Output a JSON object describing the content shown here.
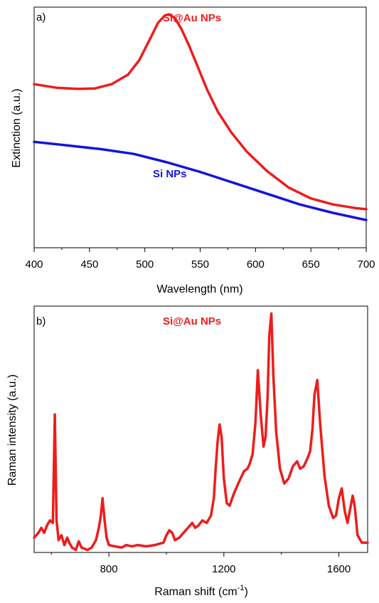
{
  "colors": {
    "red": "#ee1c1c",
    "blue": "#1414dd",
    "axis": "#000000"
  },
  "chart_data": [
    {
      "type": "line",
      "panel_label": "a)",
      "xlabel": "Wavelength (nm)",
      "ylabel": "Extinction (a.u.)",
      "xlim": [
        400,
        700
      ],
      "ylim": [
        0,
        1
      ],
      "y_tick_labels": false,
      "x_ticks": [
        400,
        450,
        500,
        550,
        600,
        650,
        700
      ],
      "series": [
        {
          "name": "Si@Au NPs",
          "color": "#ee1c1c",
          "x": [
            400,
            420,
            440,
            455,
            470,
            485,
            495,
            505,
            512,
            518,
            522,
            527,
            533,
            540,
            548,
            556,
            566,
            578,
            592,
            610,
            630,
            650,
            670,
            690,
            700
          ],
          "y": [
            0.68,
            0.665,
            0.66,
            0.662,
            0.68,
            0.72,
            0.78,
            0.87,
            0.935,
            0.965,
            0.97,
            0.955,
            0.91,
            0.84,
            0.75,
            0.66,
            0.565,
            0.48,
            0.4,
            0.32,
            0.25,
            0.205,
            0.18,
            0.165,
            0.16
          ]
        },
        {
          "name": "Si NPs",
          "color": "#1414dd",
          "x": [
            400,
            430,
            460,
            490,
            520,
            550,
            580,
            610,
            640,
            670,
            700
          ],
          "y": [
            0.44,
            0.425,
            0.41,
            0.39,
            0.355,
            0.315,
            0.27,
            0.225,
            0.18,
            0.145,
            0.115
          ]
        }
      ]
    },
    {
      "type": "line",
      "panel_label": "b)",
      "xlabel": "Raman shift (cm",
      "xlabel_sup": "-1",
      "xlabel_end": ")",
      "ylabel": "Raman intensity (a.u.)",
      "xlim": [
        540,
        1700
      ],
      "ylim": [
        0,
        1
      ],
      "y_tick_labels": false,
      "x_ticks": [
        800,
        1200,
        1600
      ],
      "series": [
        {
          "name": "Si@Au NPs",
          "color": "#ee1c1c",
          "x": [
            540,
            555,
            565,
            575,
            585,
            595,
            605,
            612,
            618,
            625,
            635,
            645,
            655,
            662,
            672,
            685,
            695,
            705,
            715,
            725,
            740,
            755,
            765,
            772,
            778,
            785,
            792,
            800,
            820,
            845,
            860,
            880,
            900,
            930,
            960,
            990,
            1000,
            1010,
            1020,
            1030,
            1045,
            1060,
            1075,
            1090,
            1100,
            1112,
            1125,
            1140,
            1155,
            1165,
            1172,
            1178,
            1185,
            1192,
            1200,
            1210,
            1220,
            1235,
            1250,
            1262,
            1270,
            1282,
            1290,
            1300,
            1310,
            1318,
            1328,
            1338,
            1345,
            1352,
            1358,
            1365,
            1372,
            1382,
            1395,
            1410,
            1425,
            1440,
            1455,
            1465,
            1478,
            1490,
            1500,
            1508,
            1515,
            1525,
            1535,
            1550,
            1565,
            1580,
            1590,
            1600,
            1610,
            1620,
            1630,
            1640,
            1648,
            1655,
            1665,
            1680,
            1700
          ],
          "y": [
            0.06,
            0.08,
            0.1,
            0.08,
            0.11,
            0.13,
            0.12,
            0.56,
            0.13,
            0.05,
            0.07,
            0.03,
            0.06,
            0.04,
            0.02,
            0.01,
            0.045,
            0.02,
            0.015,
            0.01,
            0.02,
            0.05,
            0.1,
            0.15,
            0.22,
            0.13,
            0.06,
            0.03,
            0.025,
            0.02,
            0.03,
            0.025,
            0.03,
            0.025,
            0.03,
            0.04,
            0.07,
            0.09,
            0.08,
            0.05,
            0.06,
            0.08,
            0.1,
            0.12,
            0.1,
            0.11,
            0.13,
            0.12,
            0.15,
            0.22,
            0.35,
            0.45,
            0.52,
            0.47,
            0.3,
            0.2,
            0.19,
            0.24,
            0.28,
            0.31,
            0.33,
            0.34,
            0.36,
            0.4,
            0.53,
            0.74,
            0.56,
            0.43,
            0.47,
            0.63,
            0.88,
            0.97,
            0.72,
            0.49,
            0.34,
            0.28,
            0.3,
            0.35,
            0.37,
            0.34,
            0.35,
            0.38,
            0.41,
            0.5,
            0.64,
            0.7,
            0.52,
            0.31,
            0.19,
            0.14,
            0.15,
            0.22,
            0.26,
            0.17,
            0.12,
            0.18,
            0.23,
            0.19,
            0.07,
            0.04,
            0.04
          ]
        }
      ]
    }
  ]
}
